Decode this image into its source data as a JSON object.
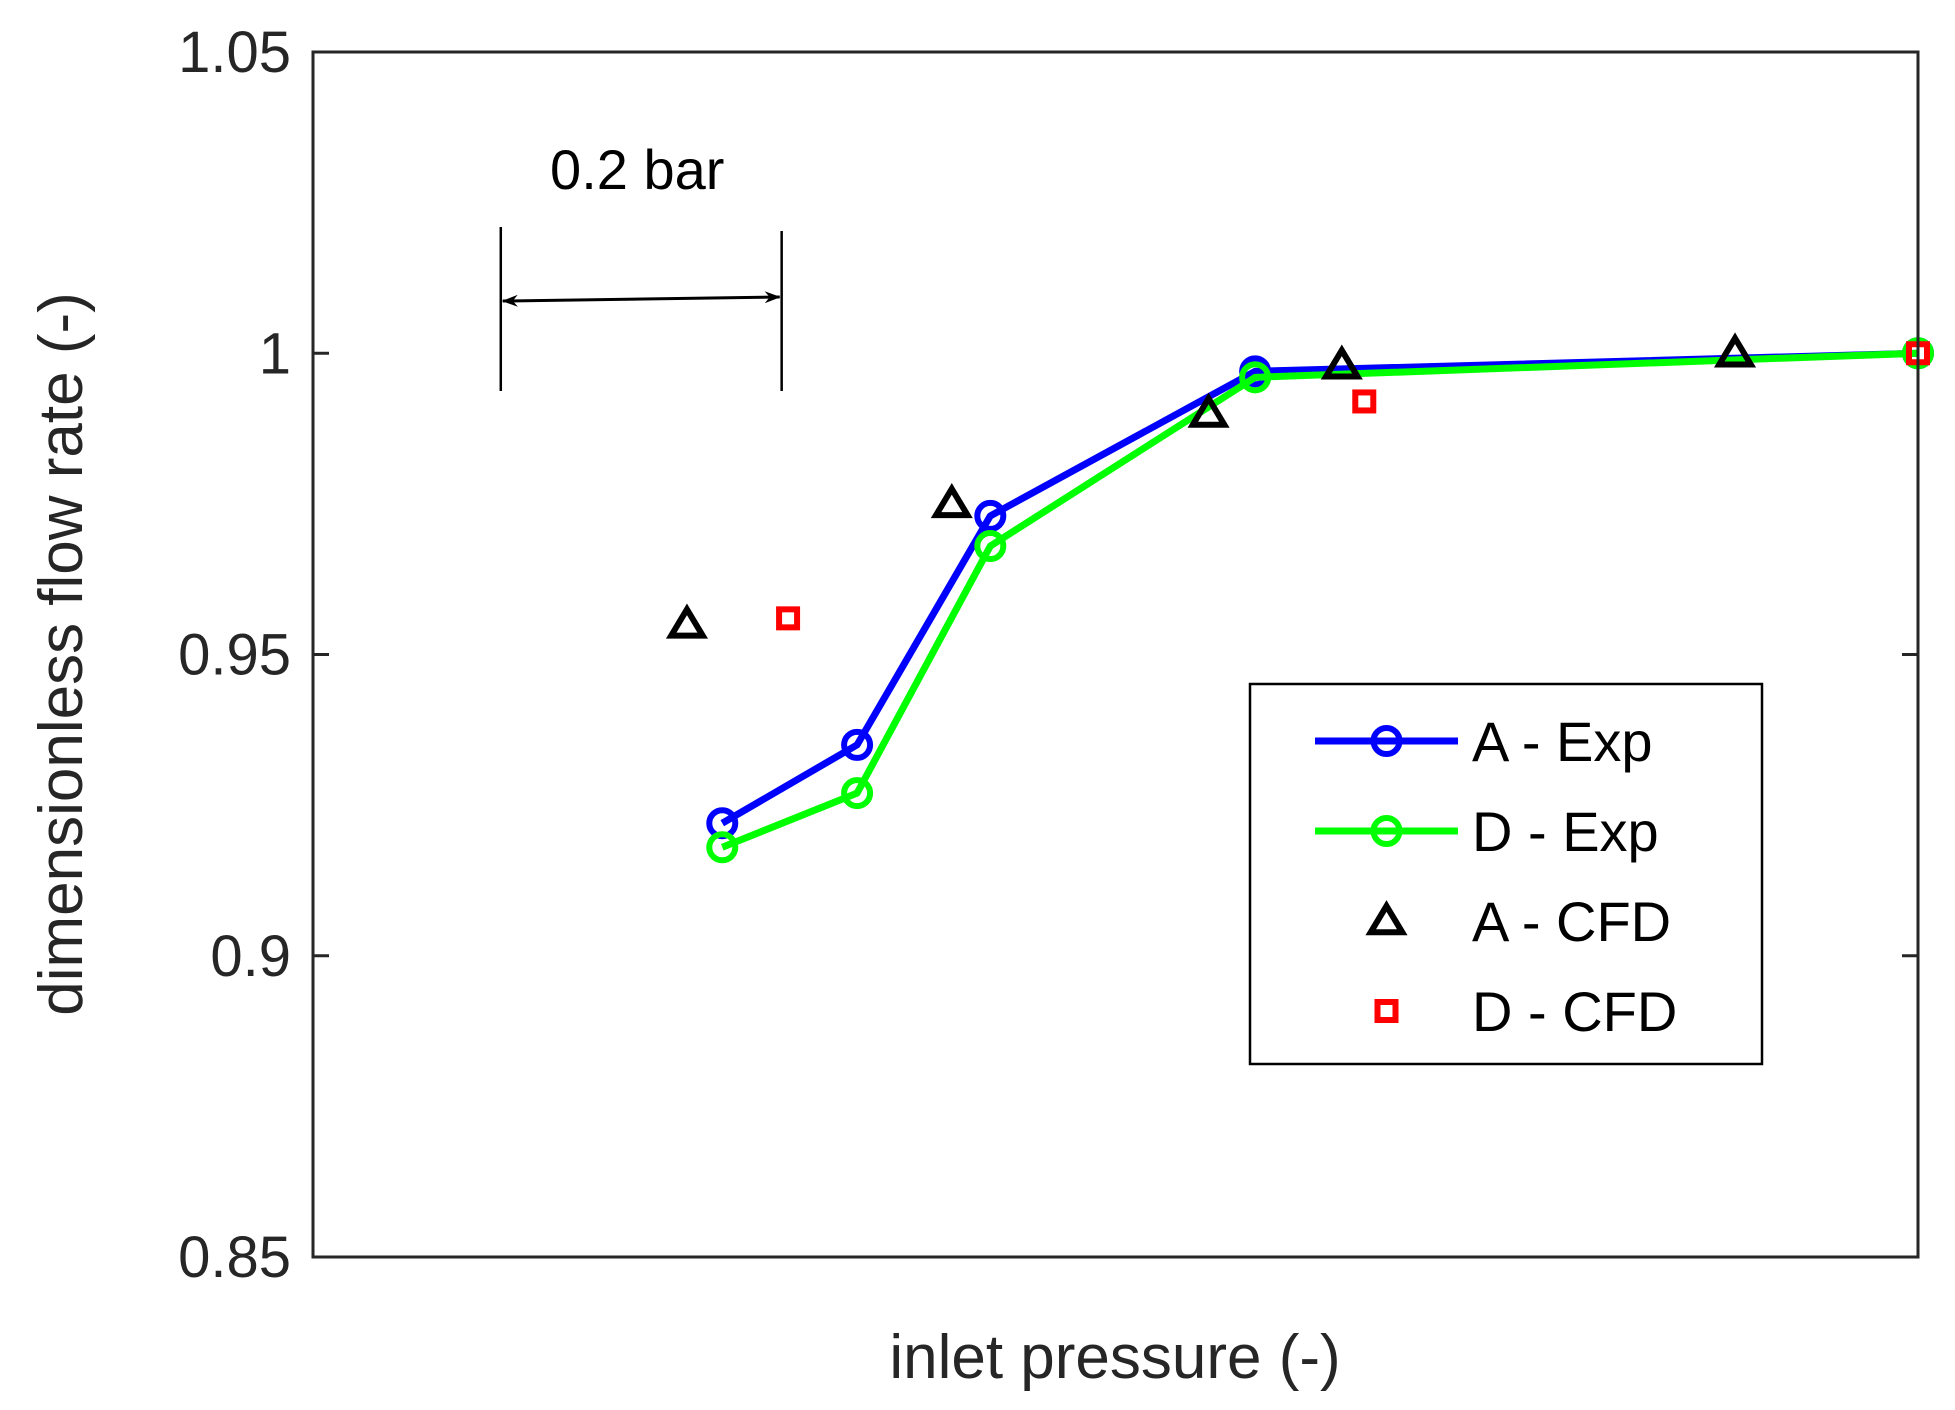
{
  "chart_data": {
    "type": "line",
    "title": "",
    "xlabel": "inlet pressure (-)",
    "ylabel": "dimensionless flow rate (-)",
    "xlim": [
      0,
      1
    ],
    "ylim": [
      0.85,
      1.05
    ],
    "yticks": [
      0.85,
      0.9,
      0.95,
      1.0,
      1.05
    ],
    "ytick_labels": [
      "0.85",
      "0.9",
      "0.95",
      "1",
      "1.05"
    ],
    "xticks_shown": false,
    "grid": false,
    "legend_position": "center-right",
    "series": [
      {
        "name": "A - Exp",
        "color": "#0000ff",
        "style": "line-circle",
        "x": [
          0.255,
          0.339,
          0.422,
          0.587,
          1.0
        ],
        "y": [
          0.922,
          0.935,
          0.973,
          0.997,
          1.0
        ]
      },
      {
        "name": "D - Exp",
        "color": "#00ff00",
        "style": "line-circle",
        "x": [
          0.255,
          0.339,
          0.422,
          0.587,
          1.0
        ],
        "y": [
          0.918,
          0.927,
          0.968,
          0.996,
          1.0
        ]
      },
      {
        "name": "A - CFD",
        "color": "#000000",
        "style": "triangle",
        "x": [
          0.233,
          0.398,
          0.558,
          0.641,
          0.886
        ],
        "y": [
          0.955,
          0.975,
          0.99,
          0.998,
          1.0
        ]
      },
      {
        "name": "D - CFD",
        "color": "#ff0000",
        "style": "square",
        "x": [
          0.296,
          0.655,
          1.0
        ],
        "y": [
          0.956,
          0.992,
          1.0
        ]
      }
    ],
    "annotations": [
      {
        "text": "0.2 bar",
        "type": "double-arrow",
        "x_start": 0.117,
        "x_end": 0.292,
        "y": 1.009
      }
    ]
  }
}
